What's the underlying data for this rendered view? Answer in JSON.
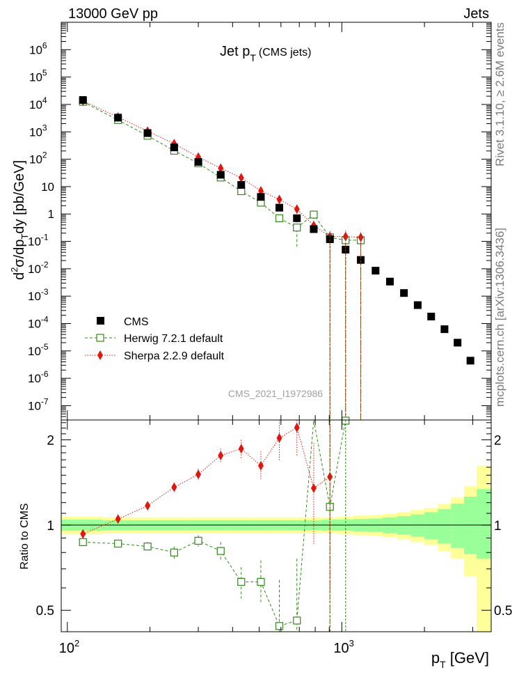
{
  "header": {
    "left_label": "13000 GeV pp",
    "right_label": "Jets",
    "side_label_top": "Rivet 3.1.10, ≥ 2.6M events",
    "side_label_bottom": "mcplots.cern.ch [arXiv:1306.3436]",
    "watermark": "CMS_2021_I1972986"
  },
  "chart_data": [
    {
      "type": "scatter",
      "panel": "main",
      "title": "Jet p_T (CMS jets)",
      "title_main": "Jet p",
      "title_sub": "T",
      "title_suffix": "(CMS jets)",
      "xlabel": "p_T [GeV]",
      "ylabel": "d²σ/dp_T dy [pb/GeV]",
      "xscale": "log",
      "yscale": "log",
      "xlim": [
        95,
        3500
      ],
      "ylim": [
        3e-08,
        10000000.0
      ],
      "y_tick_labels": [
        "10^-7",
        "10^-6",
        "10^-5",
        "10^-4",
        "10^-3",
        "10^-2",
        "10^-1",
        "1",
        "10",
        "10^2",
        "10^3",
        "10^4",
        "10^5",
        "10^6"
      ],
      "legend_position": "bottom-left",
      "series": [
        {
          "name": "CMS",
          "legend_label": "CMS",
          "color": "#000000",
          "marker": "filled-square",
          "x": [
            114,
            153,
            196,
            245,
            300,
            362,
            430,
            507,
            592,
            686,
            790,
            905,
            1032,
            1172,
            1327,
            1497,
            1684,
            1890,
            2116,
            2366,
            2640,
            2941
          ],
          "y": [
            14500,
            3300,
            900,
            270,
            80,
            27,
            11.5,
            4.2,
            1.7,
            0.7,
            0.28,
            0.12,
            0.05,
            0.021,
            0.0085,
            0.0034,
            0.0013,
            0.00047,
            0.00018,
            6.2e-05,
            2e-05,
            4.4e-06
          ]
        },
        {
          "name": "Herwig 7.2.1 default",
          "legend_label": "Herwig 7.2.1 default",
          "color": "#2e8b15",
          "marker": "open-square",
          "line": "dashed",
          "x": [
            114,
            153,
            196,
            245,
            300,
            362,
            430,
            507,
            592,
            686,
            790,
            905,
            1032,
            1172
          ],
          "y": [
            12500,
            2700,
            720,
            205,
            71,
            21.5,
            6.8,
            2.6,
            0.7,
            0.32,
            0.95,
            0.14,
            0.11,
            0.11
          ],
          "err_low": [
            0,
            0,
            0,
            0,
            0,
            0,
            0,
            0,
            0.15,
            0.26,
            0.3,
            0.14,
            0.11,
            0.11
          ],
          "err_high": [
            0,
            0,
            0,
            0,
            0,
            0,
            0,
            0,
            0.15,
            0.3,
            0.3,
            0.1,
            0.1,
            0.08
          ]
        },
        {
          "name": "Sherpa 2.2.9 default",
          "legend_label": "Sherpa 2.2.9 default",
          "color": "#e0170f",
          "marker": "filled-diamond",
          "line": "dotted",
          "x": [
            114,
            153,
            196,
            245,
            300,
            362,
            430,
            507,
            592,
            686,
            790,
            905,
            1032,
            1172
          ],
          "y": [
            13400,
            3470,
            1060,
            370,
            120,
            47,
            21,
            7.0,
            3.4,
            1.5,
            0.38,
            0.15,
            0.15,
            0.14
          ],
          "err_low": [
            0,
            0,
            0,
            0,
            10,
            5,
            3,
            1.2,
            0.8,
            0.6,
            0.17,
            0.15,
            0.15,
            0.14
          ],
          "err_high": [
            0,
            0,
            0,
            0,
            10,
            5,
            3,
            1.2,
            0.8,
            0.6,
            0.17,
            0.07,
            0.1,
            0.07
          ]
        }
      ]
    },
    {
      "type": "scatter",
      "panel": "ratio",
      "ylabel": "Ratio to CMS",
      "xlabel": "p_T [GeV]",
      "xscale": "log",
      "yscale": "log",
      "xlim": [
        95,
        3500
      ],
      "ylim": [
        0.42,
        2.35
      ],
      "y_ticks": [
        0.5,
        1,
        2
      ],
      "y_tick_labels": [
        "0.5",
        "1",
        "2"
      ],
      "x_tick_labels": [
        "10^2",
        "10^3"
      ],
      "bands": {
        "x_edges": [
          95,
          134,
          175,
          220,
          272,
          331,
          396,
          468,
          549,
          639,
          738,
          848,
          968,
          1101,
          1248,
          1411,
          1589,
          1785,
          2000,
          2238,
          2500,
          2788,
          3100,
          3500
        ],
        "stat_syst_low": [
          0.93,
          0.935,
          0.935,
          0.935,
          0.935,
          0.935,
          0.935,
          0.935,
          0.935,
          0.935,
          0.935,
          0.935,
          0.93,
          0.92,
          0.915,
          0.905,
          0.89,
          0.87,
          0.85,
          0.81,
          0.76,
          0.66,
          0.4
        ],
        "stat_syst_high": [
          1.07,
          1.065,
          1.065,
          1.065,
          1.065,
          1.065,
          1.065,
          1.065,
          1.065,
          1.065,
          1.065,
          1.065,
          1.07,
          1.08,
          1.085,
          1.095,
          1.11,
          1.13,
          1.15,
          1.19,
          1.25,
          1.37,
          1.62
        ],
        "stat_low": [
          0.955,
          0.96,
          0.96,
          0.96,
          0.96,
          0.96,
          0.96,
          0.96,
          0.96,
          0.96,
          0.96,
          0.955,
          0.955,
          0.95,
          0.945,
          0.935,
          0.925,
          0.91,
          0.89,
          0.86,
          0.83,
          0.79,
          0.76
        ],
        "stat_high": [
          1.045,
          1.04,
          1.04,
          1.04,
          1.04,
          1.04,
          1.04,
          1.04,
          1.04,
          1.04,
          1.04,
          1.045,
          1.045,
          1.05,
          1.055,
          1.065,
          1.075,
          1.09,
          1.11,
          1.14,
          1.19,
          1.26,
          1.34
        ],
        "outer_color": "#ffff99",
        "inner_color": "#99ff99"
      },
      "series": [
        {
          "name": "Herwig 7.2.1 default",
          "color": "#2e8b15",
          "x": [
            114,
            153,
            196,
            245,
            300,
            362,
            430,
            507,
            592,
            686,
            905
          ],
          "y": [
            0.87,
            0.86,
            0.84,
            0.8,
            0.88,
            0.81,
            0.63,
            0.63,
            0.44,
            0.46,
            1.16
          ],
          "err_low": [
            0,
            0,
            0.03,
            0.04,
            0.04,
            0.06,
            0.08,
            0.1,
            0.1,
            0.2,
            0.8
          ],
          "err_high": [
            0,
            0,
            0.03,
            0.04,
            0.04,
            0.06,
            0.08,
            0.12,
            0.2,
            0.3,
            1.2
          ],
          "offscale": [
            {
              "x": 790,
              "direction": "up"
            },
            {
              "x": 1032,
              "direction": "up"
            }
          ]
        },
        {
          "name": "Sherpa 2.2.9 default",
          "color": "#e0170f",
          "x": [
            114,
            153,
            196,
            245,
            300,
            362,
            430,
            507,
            592,
            686,
            790,
            905
          ],
          "y": [
            0.93,
            1.05,
            1.17,
            1.36,
            1.51,
            1.76,
            1.86,
            1.62,
            2.03,
            2.21,
            1.35,
            1.48
          ],
          "err_low": [
            0,
            0,
            0.03,
            0.05,
            0.07,
            0.1,
            0.14,
            0.18,
            0.35,
            0.45,
            0.5,
            0.9
          ],
          "err_high": [
            0,
            0,
            0.03,
            0.05,
            0.07,
            0.1,
            0.14,
            0.2,
            0.35,
            0.45,
            0.6,
            0.8
          ]
        }
      ]
    }
  ]
}
